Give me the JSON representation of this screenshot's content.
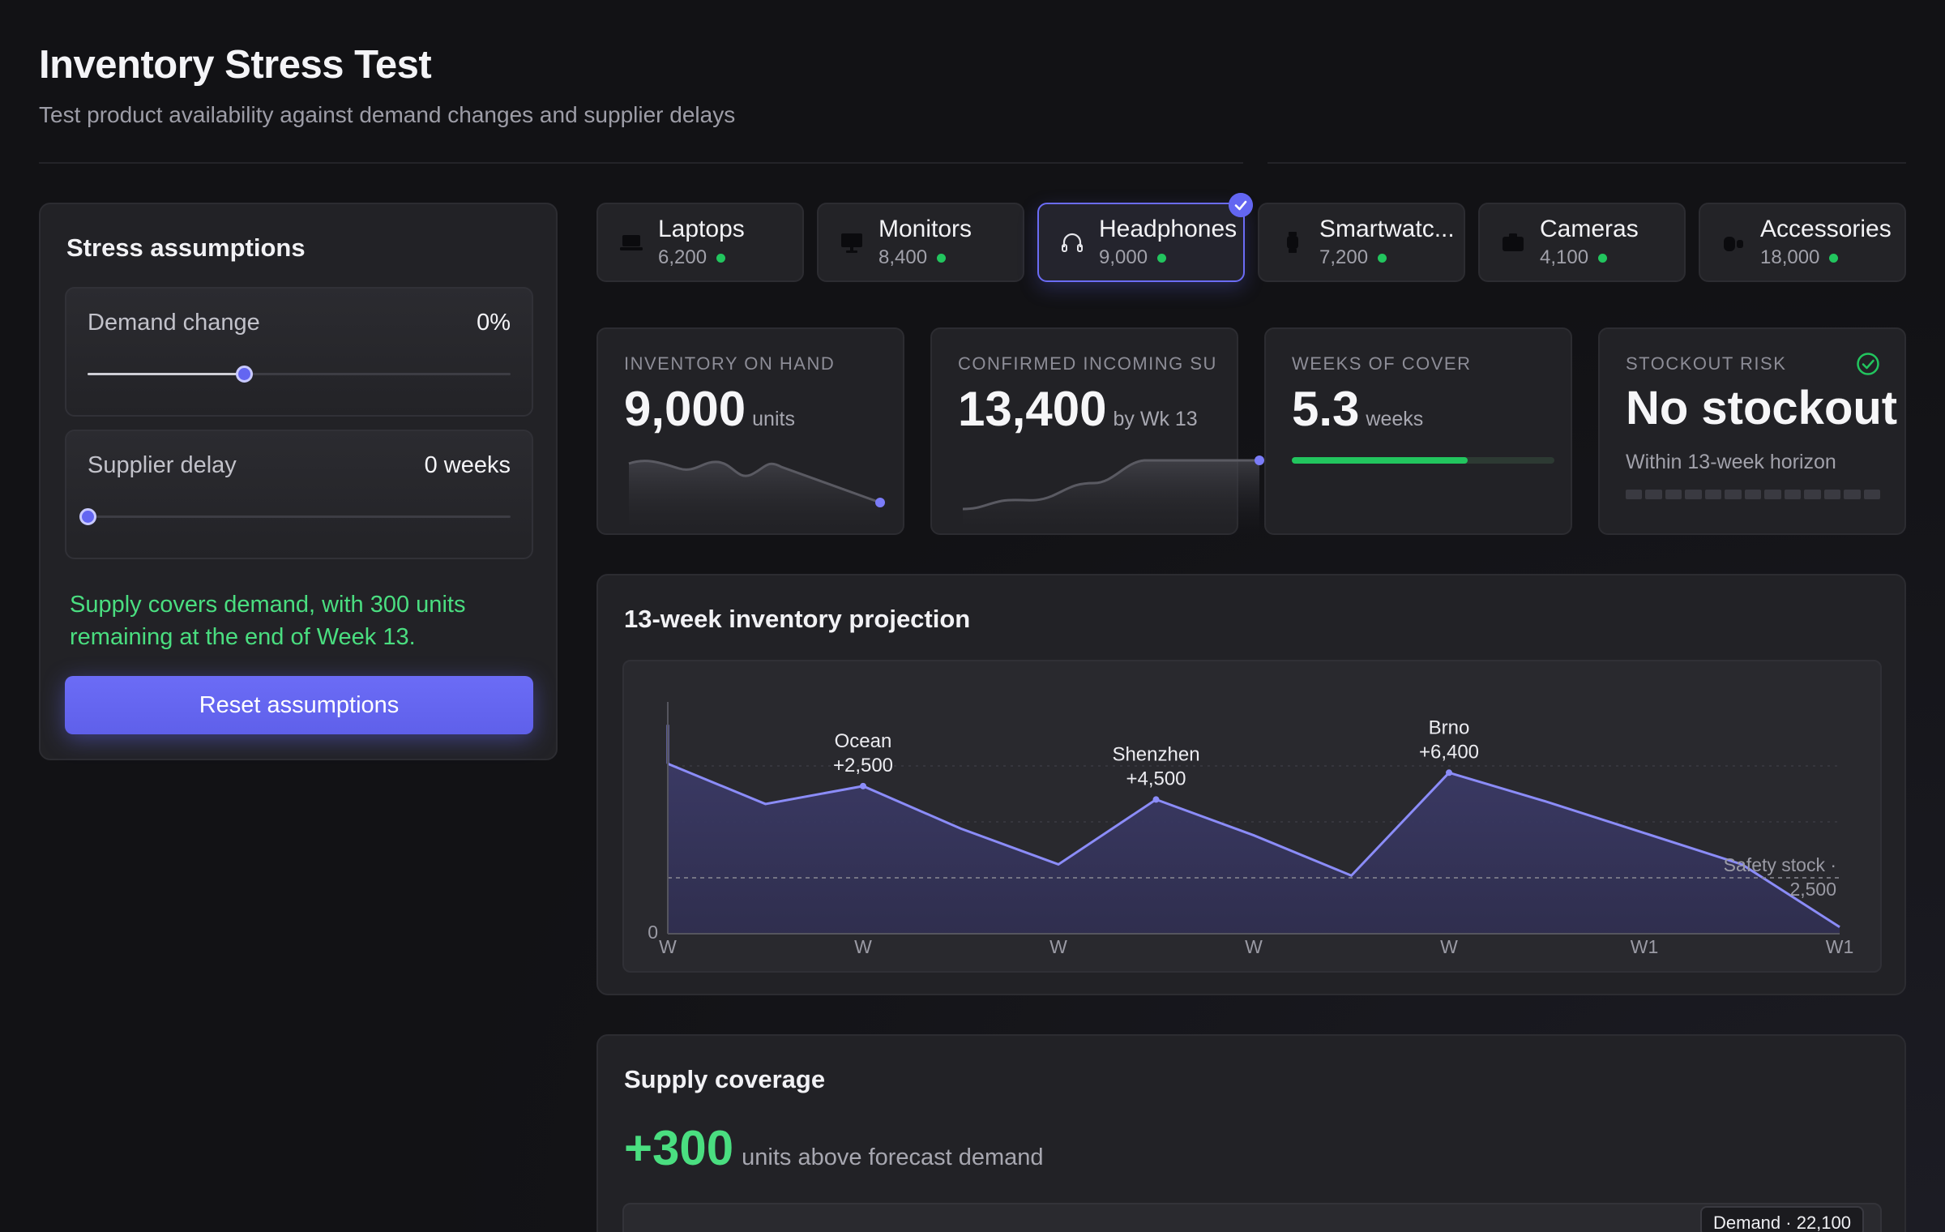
{
  "header": {
    "title": "Inventory Stress Test",
    "subtitle": "Test product availability against demand changes and supplier delays"
  },
  "assumptions": {
    "title": "Stress assumptions",
    "demand": {
      "label": "Demand change",
      "value": "0%",
      "level": 0.37
    },
    "delay": {
      "label": "Supplier delay",
      "value": "0 weeks",
      "level": 0.0
    },
    "status_message": "Supply covers demand, with 300 units remaining at the end of Week 13.",
    "reset_label": "Reset assumptions"
  },
  "products": [
    {
      "name": "Laptops",
      "count": "6,200",
      "icon": "laptop-icon",
      "selected": false
    },
    {
      "name": "Monitors",
      "count": "8,400",
      "icon": "monitor-icon",
      "selected": false
    },
    {
      "name": "Headphones",
      "count": "9,000",
      "icon": "headphones-icon",
      "selected": true
    },
    {
      "name": "Smartwatc...",
      "count": "7,200",
      "icon": "smartwatch-icon",
      "selected": false
    },
    {
      "name": "Cameras",
      "count": "4,100",
      "icon": "camera-icon",
      "selected": false
    },
    {
      "name": "Accessories",
      "count": "18,000",
      "icon": "accessories-icon",
      "selected": false
    }
  ],
  "metrics": {
    "inventory": {
      "label": "INVENTORY ON HAND",
      "value": "9,000",
      "unit": "units"
    },
    "incoming": {
      "label": "CONFIRMED INCOMING SU",
      "value": "13,400",
      "unit": "by Wk 13"
    },
    "cover": {
      "label": "WEEKS OF COVER",
      "value": "5.3",
      "unit": "weeks",
      "fill": 0.67
    },
    "risk": {
      "label": "STOCKOUT RISK",
      "value": "No stockout",
      "sub": "Within 13-week horizon"
    }
  },
  "projection": {
    "title": "13-week inventory projection",
    "zero_label": "0",
    "safety_label_1": "Safety stock ·",
    "safety_label_2": "2,500",
    "x_ticks": [
      "W",
      "W",
      "W",
      "W",
      "W",
      "W1",
      "W1"
    ],
    "annotations": [
      {
        "line1": "Ocean",
        "line2": "+2,500"
      },
      {
        "line1": "Shenzhen",
        "line2": "+4,500"
      },
      {
        "line1": "Brno",
        "line2": "+6,400"
      }
    ]
  },
  "chart_data": {
    "type": "area",
    "title": "13-week inventory projection",
    "x": [
      0,
      1,
      2,
      3,
      4,
      5,
      6,
      7,
      8,
      9,
      10,
      11,
      12
    ],
    "values": [
      7600,
      5800,
      6600,
      4700,
      3100,
      6000,
      4400,
      2600,
      7200,
      5900,
      4500,
      3100,
      300
    ],
    "safety_stock": 2500,
    "ylim": [
      0,
      10000
    ],
    "colors": {
      "line": "#8b8cf8",
      "fill": "#3b3a66"
    }
  },
  "coverage": {
    "title": "Supply coverage",
    "value": "+300",
    "desc": "units above forecast demand",
    "demand_tag": "Demand · 22,100"
  },
  "colors": {
    "accent": "#6366f1",
    "success": "#4ade80"
  }
}
